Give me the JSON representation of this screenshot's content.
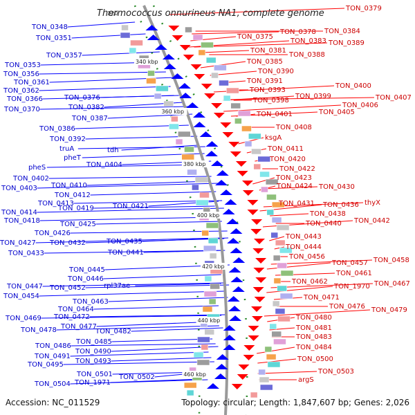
{
  "title": "Thermococcus onnurineus NA1, complete genome",
  "accession": "Accession: NC_011529",
  "topology": "Topology: circular; Length: 1,847,607 bp; Genes: 2,026",
  "scale_labels": [
    "320",
    "340 kbp",
    "360 kbp",
    "380 kbp",
    "400 kbp",
    "420 kbp",
    "440 kbp",
    "460 kbp"
  ],
  "colors": {
    "left_genes": "#0000ff",
    "right_genes": "#ff0000",
    "left_text": "#0000cc",
    "right_text": "#cc0000",
    "backbone": "#999999",
    "ticks": "#2a8a2a"
  },
  "left_labels": [
    "TON_0348",
    "TON_0351",
    "TON_0357",
    "TON_0353",
    "TON_0356",
    "TON_0361",
    "TON_0362",
    "TON_0366",
    "TON_0370",
    "TON_0376",
    "TON_0382",
    "TON_0387",
    "TON_0386",
    "TON_0392",
    "truA",
    "tdh",
    "pheT",
    "TON_0404",
    "pheS",
    "TON_0402",
    "TON_0403",
    "TON_0410",
    "TON_0412",
    "TON_0413",
    "TON_0419",
    "TON_0421",
    "TON_0414",
    "TON_0418",
    "TON_0425",
    "TON_0426",
    "TON_0427",
    "TON_0432",
    "TON_0435",
    "TON_0433",
    "TON_0441",
    "TON_0445",
    "TON_0446",
    "TON_0447",
    "TON_0452",
    "rpl37ae",
    "TON_0454",
    "TON_0463",
    "TON_0464",
    "TON_0469",
    "TON_0472",
    "TON_0477",
    "TON_0478",
    "TON_0482",
    "TON_0485",
    "TON_0486",
    "TON_0490",
    "TON_0491",
    "TON_0493",
    "TON_0495",
    "TON_0501",
    "TON_0502",
    "TON_0504",
    "TON_1971"
  ],
  "right_labels": [
    "TON_0379",
    "TON_0375",
    "TON_0378",
    "TON_0384",
    "TON_0383",
    "TON_0389",
    "TON_0381",
    "TON_0388",
    "TON_0385",
    "TON_0390",
    "TON_0391",
    "TON_0393",
    "TON_0400",
    "TON_0399",
    "TON_0407",
    "TON_0398",
    "TON_0406",
    "TON_0405",
    "TON_0401",
    "TON_0408",
    "ksgA",
    "TON_0411",
    "TON_0420",
    "TON_0422",
    "TON_0423",
    "TON_0424",
    "TON_0430",
    "TON_0431",
    "TON_0436",
    "thyX",
    "TON_0438",
    "TON_0440",
    "TON_0442",
    "TON_0443",
    "TON_0444",
    "TON_0456",
    "TON_0457",
    "TON_0458",
    "TON_0461",
    "TON_0462",
    "TON_1970",
    "TON_0467",
    "TON_0471",
    "TON_0476",
    "TON_0479",
    "TON_0480",
    "TON_0481",
    "TON_0483",
    "TON_0484",
    "TON_0500",
    "TON_0503",
    "argS"
  ]
}
